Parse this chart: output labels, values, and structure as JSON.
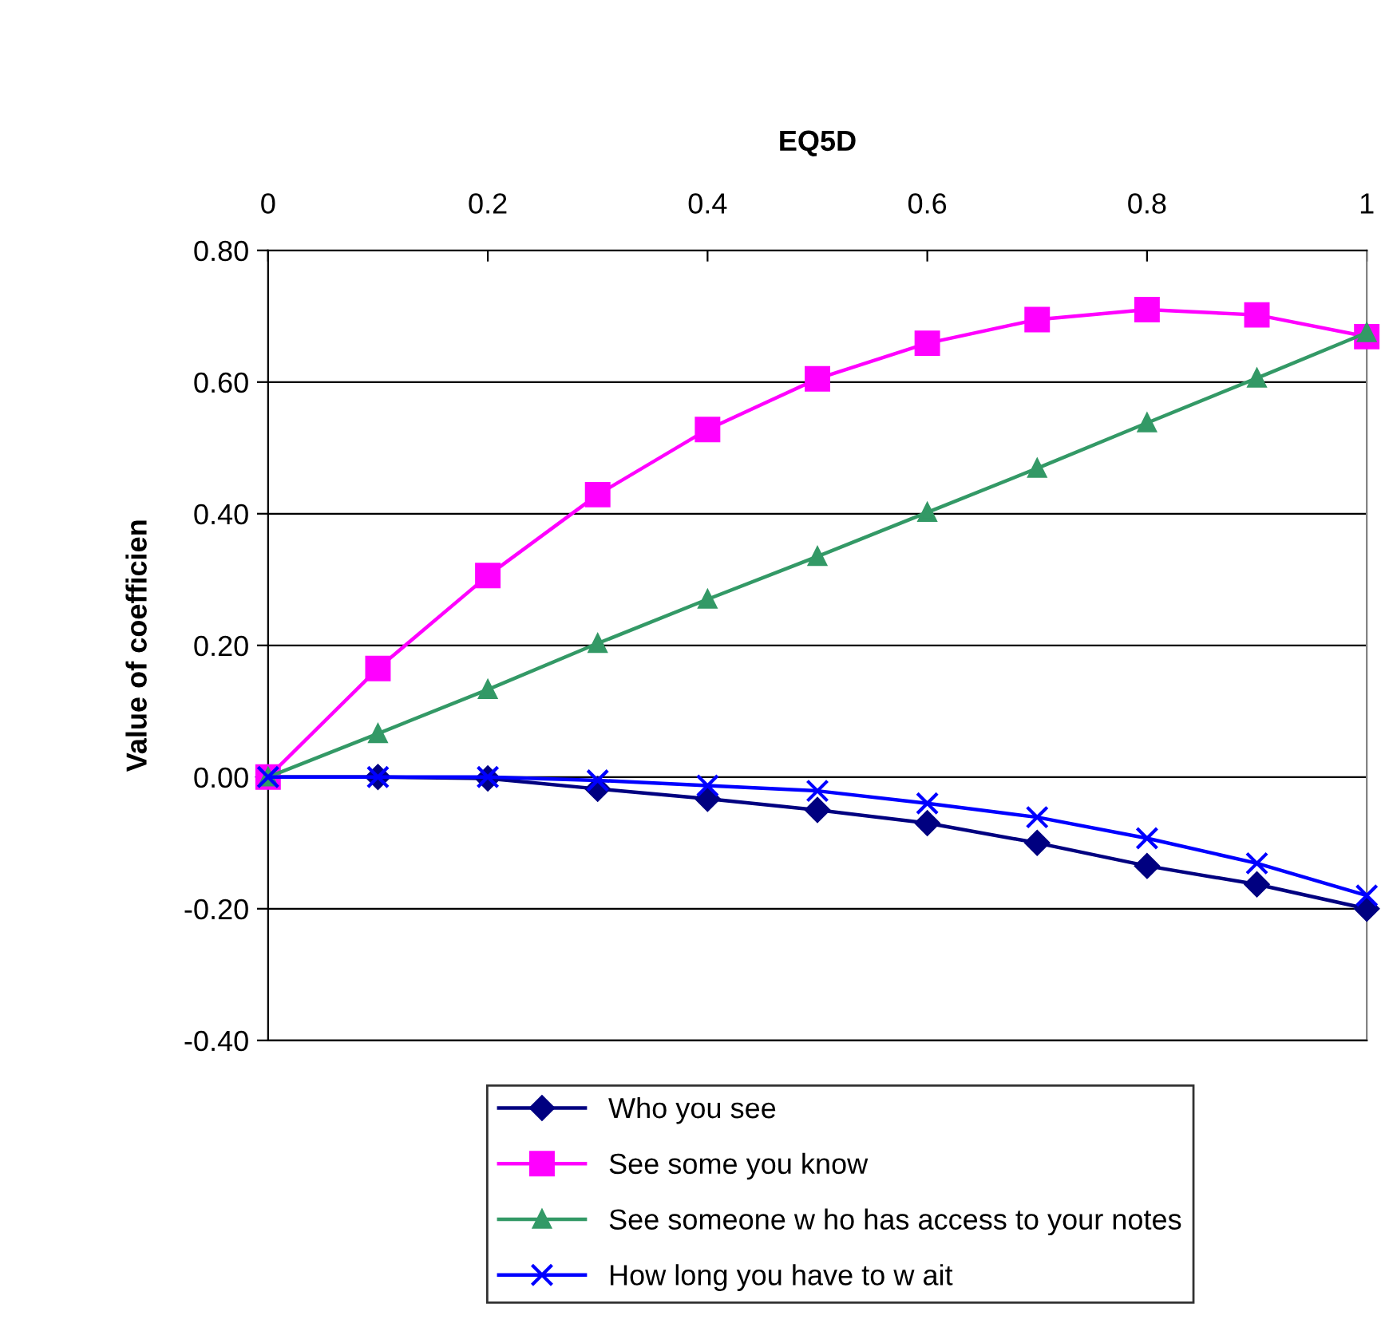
{
  "chart_data": {
    "type": "line",
    "title": "EQ5D",
    "ylabel": "Value of coefficien",
    "x": [
      0,
      0.1,
      0.2,
      0.3,
      0.4,
      0.5,
      0.6,
      0.7,
      0.8,
      0.9,
      1
    ],
    "series": [
      {
        "name": "Who you see",
        "color": "#000080",
        "marker": "diamond",
        "values": [
          0,
          0,
          -0.002,
          -0.018,
          -0.033,
          -0.05,
          -0.07,
          -0.1,
          -0.135,
          -0.163,
          -0.2
        ]
      },
      {
        "name": "See some you know",
        "color": "#ff00ff",
        "marker": "square",
        "values": [
          0,
          0.165,
          0.306,
          0.429,
          0.528,
          0.605,
          0.659,
          0.695,
          0.71,
          0.702,
          0.669
        ]
      },
      {
        "name": "See someone w ho has access to your notes",
        "color": "#339966",
        "marker": "triangle",
        "values": [
          0,
          0.066,
          0.133,
          0.203,
          0.27,
          0.335,
          0.402,
          0.469,
          0.538,
          0.606,
          0.675
        ]
      },
      {
        "name": "How long you have to w ait",
        "color": "#0000ff",
        "marker": "cross",
        "values": [
          0,
          0,
          0,
          -0.005,
          -0.013,
          -0.021,
          -0.04,
          -0.061,
          -0.093,
          -0.131,
          -0.18
        ]
      }
    ],
    "xlim": [
      0,
      1
    ],
    "xticks": [
      0,
      0.2,
      0.4,
      0.6,
      0.8,
      1
    ],
    "ylim": [
      -0.4,
      0.8
    ],
    "yticks": [
      {
        "value": -0.4,
        "label": "-0.40"
      },
      {
        "value": -0.2,
        "label": "-0.20"
      },
      {
        "value": 0,
        "label": "0.00"
      },
      {
        "value": 0.2,
        "label": "0.20"
      },
      {
        "value": 0.4,
        "label": "0.40"
      },
      {
        "value": 0.6,
        "label": "0.60"
      },
      {
        "value": 0.8,
        "label": "0.80"
      }
    ],
    "grid": "y",
    "legend": "bottom",
    "line_style": "solid"
  }
}
